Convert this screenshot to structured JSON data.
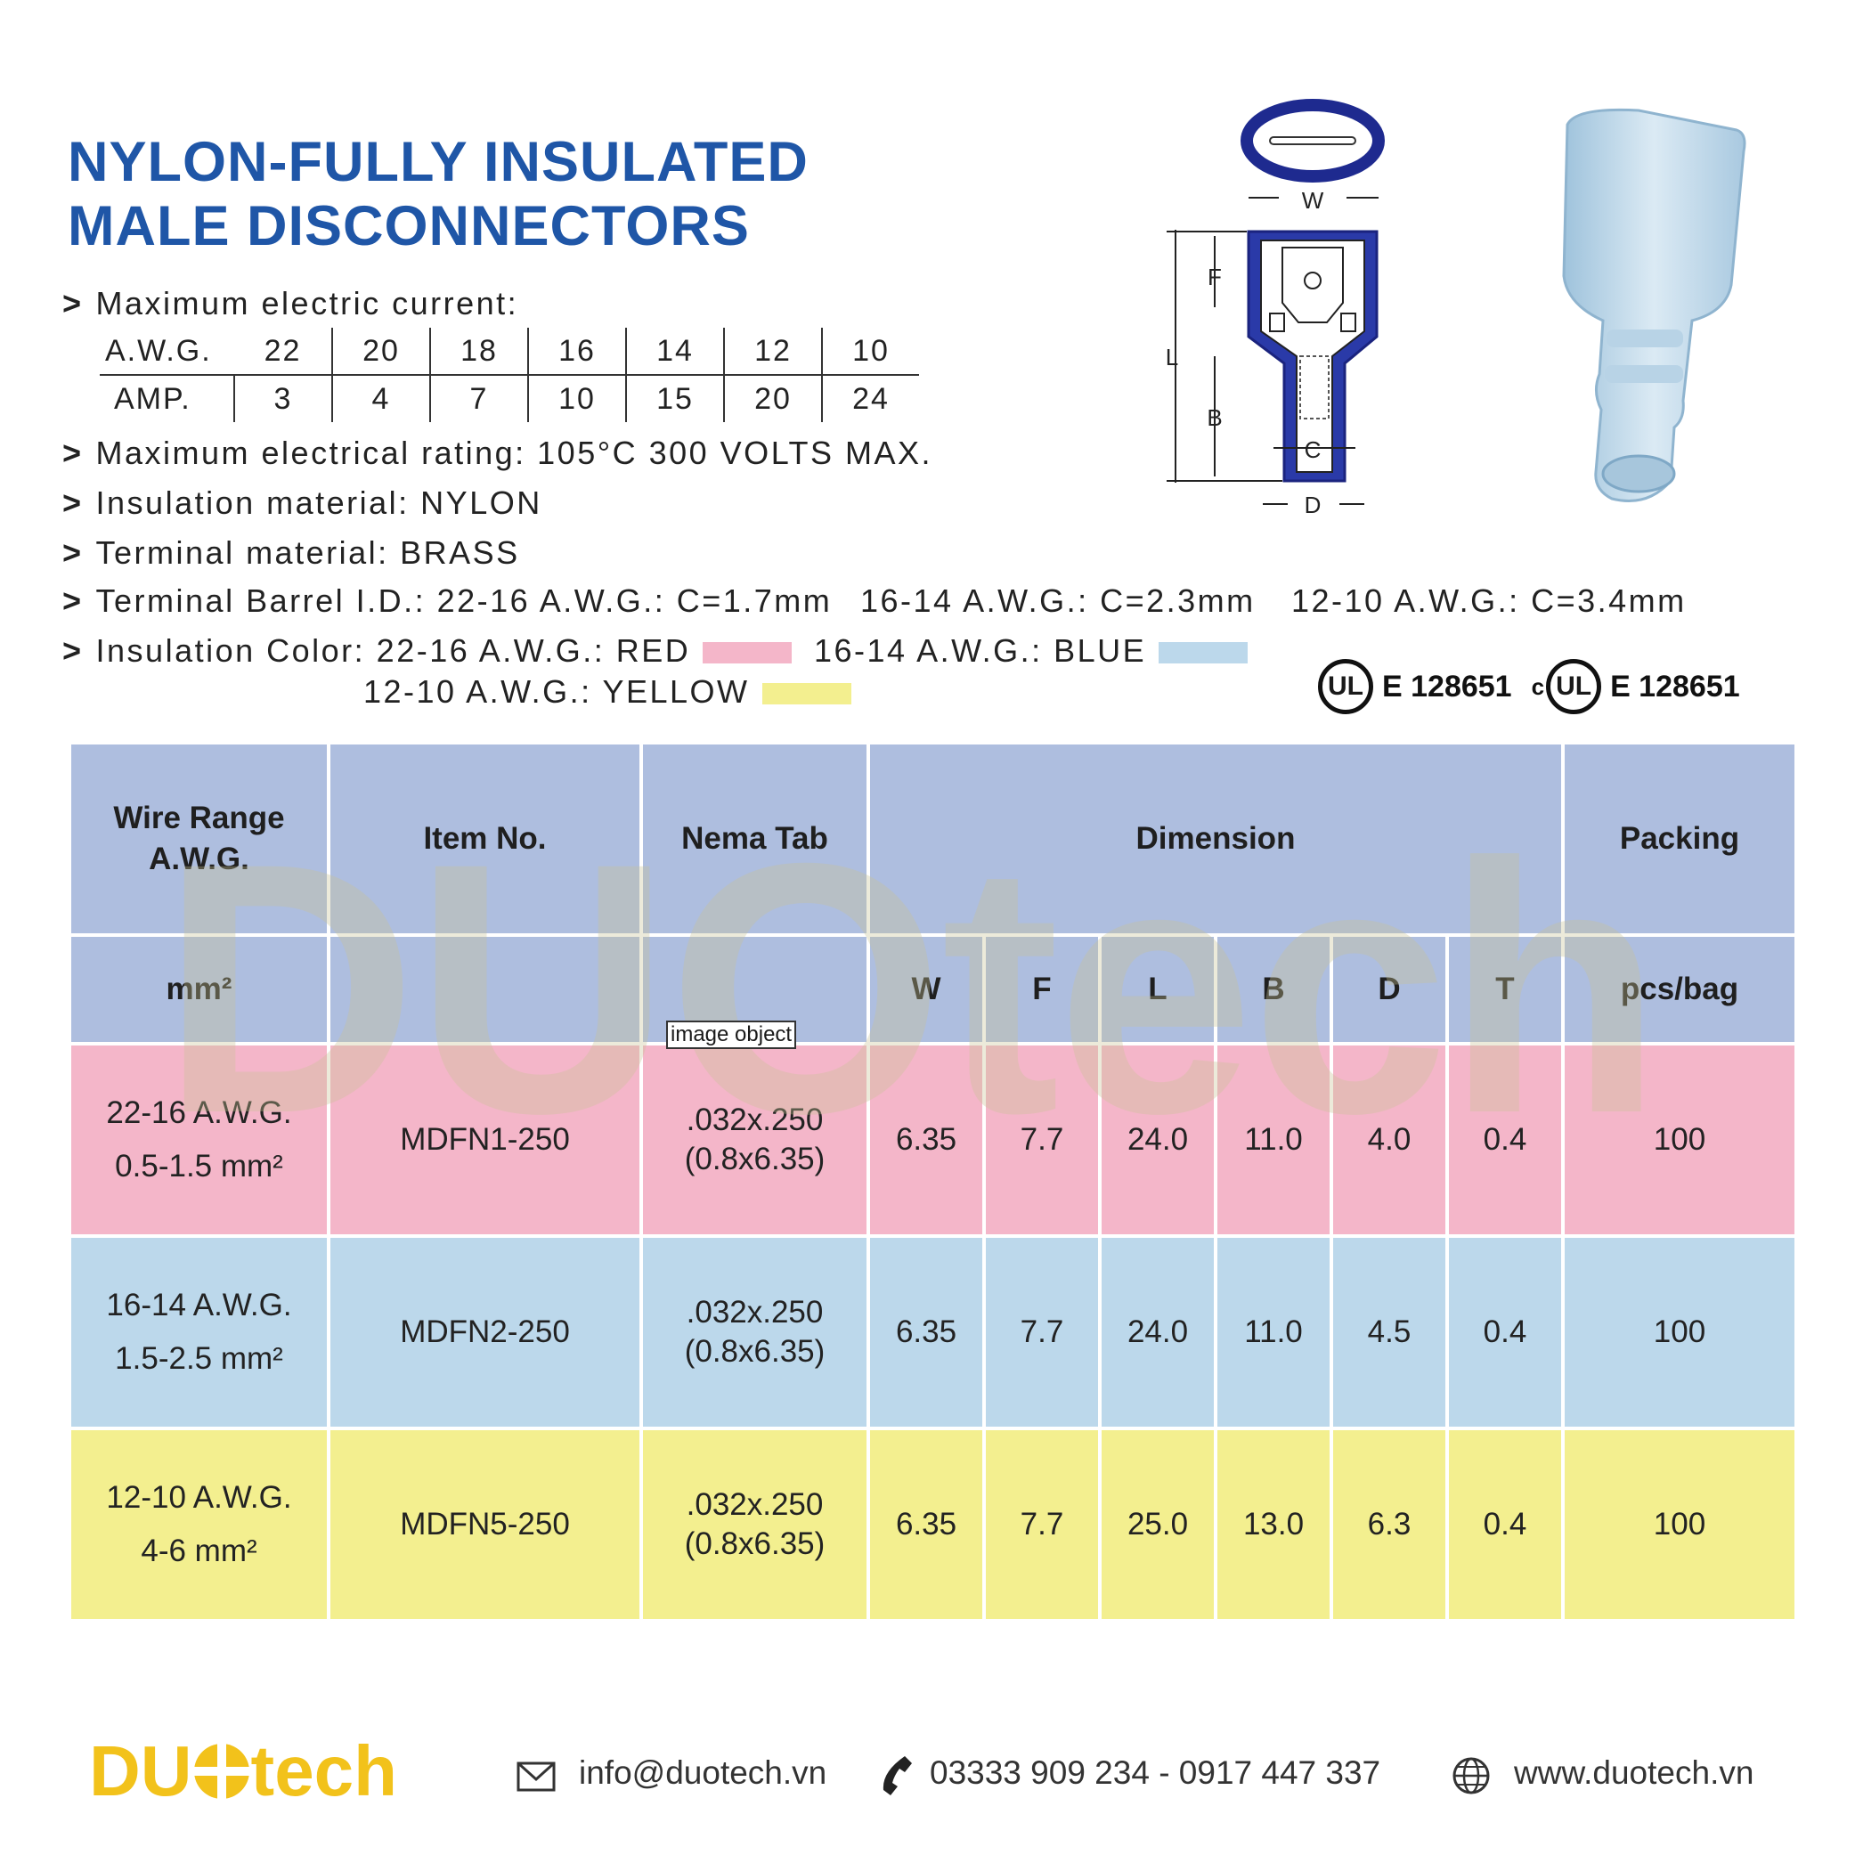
{
  "title": {
    "line1": "NYLON-FULLY INSULATED",
    "line2": "MALE DISCONNECTORS"
  },
  "specs": {
    "max_current_label": "Maximum electric current:",
    "awg_label": "A.W.G.",
    "amp_label": "AMP.",
    "awg_values": [
      "22",
      "20",
      "18",
      "16",
      "14",
      "12",
      "10"
    ],
    "amp_values": [
      "3",
      "4",
      "7",
      "10",
      "15",
      "20",
      "24"
    ],
    "rating": "Maximum electrical rating: 105°C 300 VOLTS MAX.",
    "insulation_material": "Insulation material: NYLON",
    "terminal_material": "Terminal material: BRASS",
    "barrel_label": "Terminal Barrel I.D.: 22-16 A.W.G.: C=1.7mm",
    "barrel_2": "16-14 A.W.G.: C=2.3mm",
    "barrel_3": "12-10 A.W.G.: C=3.4mm",
    "color_label": "Insulation Color: 22-16 A.W.G.: RED",
    "color_blue": "16-14 A.W.G.: BLUE",
    "color_yellow": "12-10 A.W.G.: YELLOW",
    "bullet": ">"
  },
  "colors": {
    "red": "#f4b6c9",
    "blue": "#bcd8eb",
    "yellow": "#f3ef8f",
    "header": "#aebedf",
    "title_blue": "#1f56a7",
    "logo_yellow": "#f2c21b"
  },
  "diagram": {
    "w": "W",
    "f": "F",
    "l": "L",
    "b": "B",
    "c": "C",
    "d": "D"
  },
  "certs": {
    "ul1": "E 128651",
    "c_prefix": "c",
    "ul2": "E 128651",
    "ul_mark": "UL"
  },
  "watermark": "DUOtech",
  "image_object_label": "image object",
  "table": {
    "headers": {
      "wire_range": "Wire Range A.W.G.",
      "item_no": "Item No.",
      "nema_tab": "Nema Tab",
      "dimension": "Dimension",
      "packing": "Packing",
      "mm2": "mm²",
      "w": "W",
      "f": "F",
      "l": "L",
      "b": "B",
      "d": "D",
      "t": "T",
      "pcs": "pcs/bag"
    },
    "rows": [
      {
        "awg": "22-16 A.W.G.",
        "mm": "0.5-1.5 mm²",
        "item": "MDFN1-250",
        "tab1": ".032x.250",
        "tab2": "(0.8x6.35)",
        "w": "6.35",
        "f": "7.7",
        "l": "24.0",
        "b": "11.0",
        "d": "4.0",
        "t": "0.4",
        "pack": "100"
      },
      {
        "awg": "16-14 A.W.G.",
        "mm": "1.5-2.5 mm²",
        "item": "MDFN2-250",
        "tab1": ".032x.250",
        "tab2": "(0.8x6.35)",
        "w": "6.35",
        "f": "7.7",
        "l": "24.0",
        "b": "11.0",
        "d": "4.5",
        "t": "0.4",
        "pack": "100"
      },
      {
        "awg": "12-10 A.W.G.",
        "mm": "4-6 mm²",
        "item": "MDFN5-250",
        "tab1": ".032x.250",
        "tab2": "(0.8x6.35)",
        "w": "6.35",
        "f": "7.7",
        "l": "25.0",
        "b": "13.0",
        "d": "6.3",
        "t": "0.4",
        "pack": "100"
      }
    ]
  },
  "footer": {
    "logo_text_1": "DU",
    "logo_text_2": "tech",
    "email": "info@duotech.vn",
    "phone": "03333 909 234  -  0917 447 337",
    "website": "www.duotech.vn"
  }
}
